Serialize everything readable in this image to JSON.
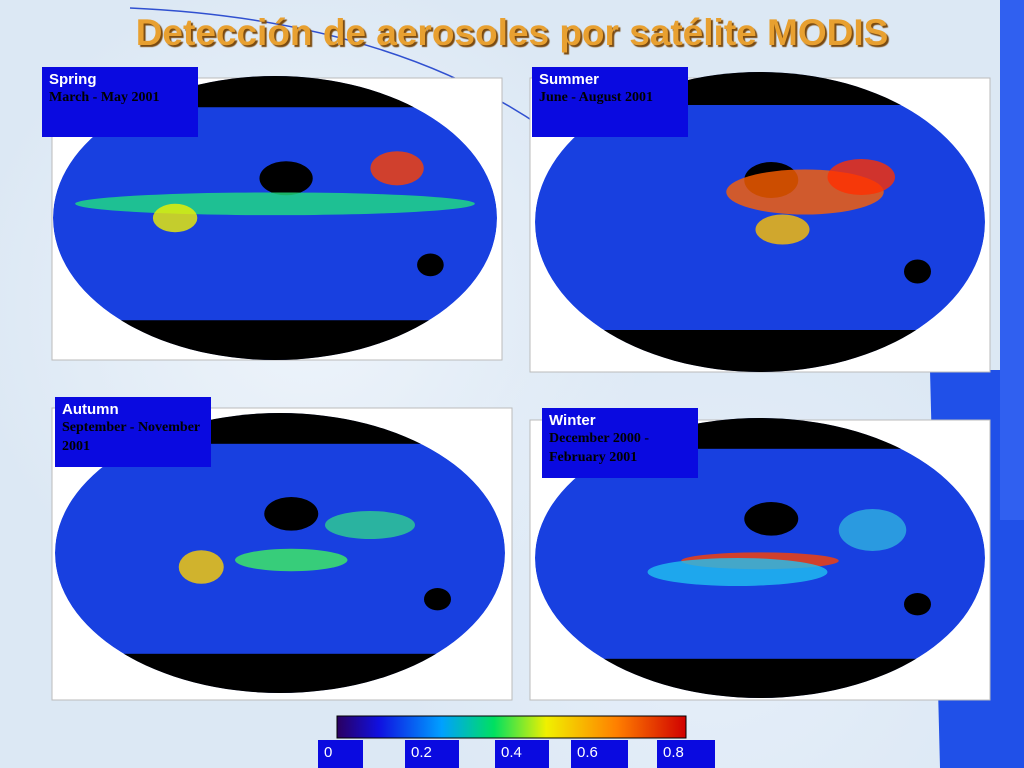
{
  "title": "Detección de aerosoles por satélite MODIS",
  "panels": [
    {
      "season": "Spring",
      "period": "March - May 2001"
    },
    {
      "season": "Summer",
      "period": "June - August 2001"
    },
    {
      "season": "Autumn",
      "period": "September - November 2001"
    },
    {
      "season": "Winter",
      "period": "December 2000 - February 2001"
    }
  ],
  "colorbar": {
    "ticks": [
      "0",
      "0.2",
      "0.4",
      "0.6",
      "0.8"
    ]
  }
}
